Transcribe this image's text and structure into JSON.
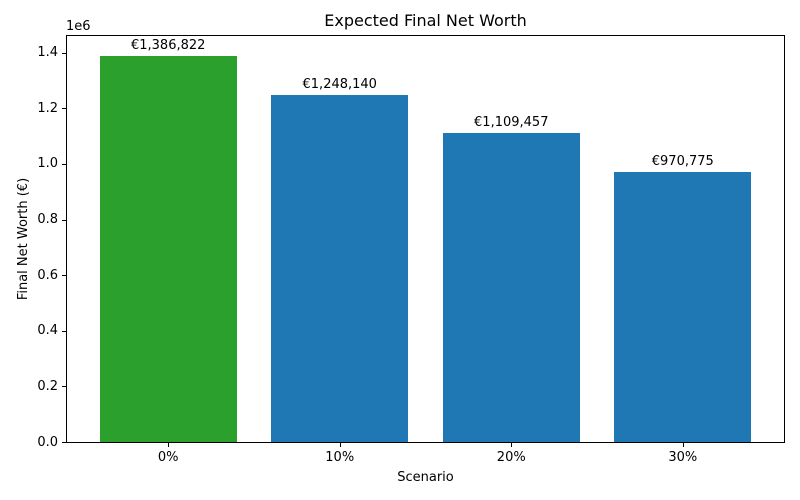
{
  "chart_data": {
    "type": "bar",
    "title": "Expected Final Net Worth",
    "xlabel": "Scenario",
    "ylabel": "Final Net Worth (€)",
    "y_offset_label": "1e6",
    "categories": [
      "0%",
      "10%",
      "20%",
      "30%"
    ],
    "values": [
      1386822,
      1248140,
      1109457,
      970775
    ],
    "bar_value_labels": [
      "€1,386,822",
      "€1,248,140",
      "€1,109,457",
      "€970,775"
    ],
    "bar_colors": [
      "#2ca02c",
      "#1f77b4",
      "#1f77b4",
      "#1f77b4"
    ],
    "bar_width": 0.8,
    "xlim": [
      -0.59,
      3.59
    ],
    "ylim": [
      0,
      1460000
    ],
    "yticks": [
      0,
      200000,
      400000,
      600000,
      800000,
      1000000,
      1200000,
      1400000
    ],
    "ytick_labels": [
      "0.0",
      "0.2",
      "0.4",
      "0.6",
      "0.8",
      "1.0",
      "1.2",
      "1.4"
    ],
    "grid": false,
    "legend": "none"
  },
  "colors": {
    "background": "#ffffff",
    "text": "#000000",
    "spine": "#000000"
  }
}
